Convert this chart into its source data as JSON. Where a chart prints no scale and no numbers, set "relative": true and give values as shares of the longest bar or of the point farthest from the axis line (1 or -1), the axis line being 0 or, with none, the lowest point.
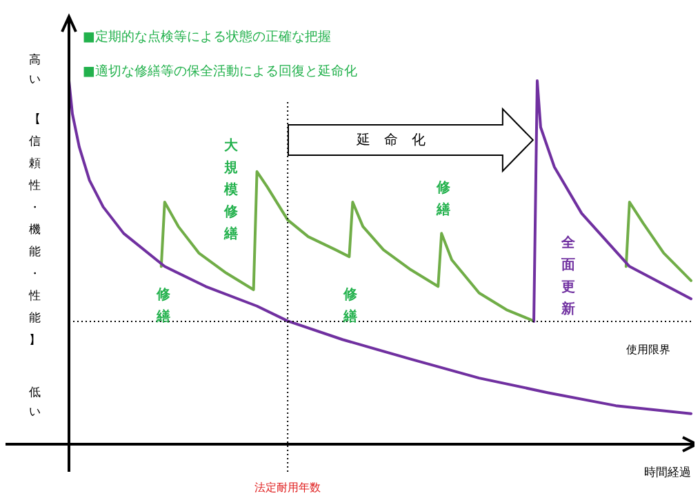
{
  "chart_data": {
    "type": "line",
    "relative": true,
    "marker": "none",
    "line_style": "solid",
    "ylabel": "【信頼性・機能・性能】",
    "xlabel": "時間経過",
    "categories": [
      null,
      null,
      null,
      null,
      null,
      null,
      null,
      null,
      null,
      null,
      null,
      null,
      null,
      null,
      null,
      null,
      null,
      null,
      null,
      null,
      null,
      null,
      null,
      null,
      null,
      null,
      null,
      null,
      null,
      null,
      null,
      null,
      null,
      null,
      null,
      null,
      null,
      null,
      null,
      null,
      null,
      null,
      null,
      null,
      null,
      null,
      null,
      null,
      null,
      null,
      null,
      null,
      null,
      null,
      null,
      null,
      null,
      null,
      null,
      null,
      null,
      null,
      null,
      null,
      null,
      null,
      null,
      null,
      null,
      null,
      null,
      null,
      null,
      null,
      null,
      null,
      null,
      null,
      null,
      null,
      null,
      null,
      null,
      null,
      null,
      null,
      null,
      null,
      null,
      null,
      null,
      null,
      null,
      null,
      null,
      null,
      null,
      null,
      null,
      null,
      null,
      null,
      null,
      null,
      null,
      null,
      null,
      null,
      null,
      null,
      null,
      null,
      null,
      null,
      null,
      null,
      null,
      null,
      null,
      null,
      null,
      null,
      null,
      null,
      null,
      null,
      null,
      null,
      null,
      null,
      null,
      null,
      null,
      null,
      null,
      null,
      null,
      null,
      null,
      null,
      null,
      null,
      null,
      null,
      null,
      null,
      null,
      null,
      null,
      null,
      null,
      null,
      null,
      null,
      null,
      null,
      null,
      null,
      null,
      null,
      null,
      null,
      null,
      null,
      null,
      null,
      null,
      null,
      null,
      null,
      null,
      null,
      null,
      null,
      null,
      null,
      null,
      null,
      null,
      null,
      null,
      null,
      null
    ],
    "series": [
      {
        "color": "#7030a0",
        "values": [
          1.0,
          0.909,
          null,
          0.818,
          null,
          null,
          0.726,
          null,
          null,
          null,
          0.653,
          null,
          null,
          null,
          null,
          null,
          0.58,
          null,
          null,
          null,
          null,
          null,
          null,
          null,
          null,
          null,
          null,
          null,
          0.489,
          null,
          null,
          null,
          null,
          null,
          null,
          null,
          null,
          null,
          null,
          null,
          0.434,
          null,
          null,
          null,
          null,
          null,
          null,
          null,
          null,
          null,
          null,
          null,
          null,
          null,
          null,
          0.38,
          null,
          null,
          null,
          null,
          null,
          null,
          null,
          null,
          0.339,
          null,
          null,
          null,
          null,
          null,
          null,
          null,
          null,
          null,
          null,
          null,
          null,
          null,
          null,
          null,
          0.288,
          null,
          null,
          null,
          null,
          null,
          null,
          null,
          null,
          null,
          null,
          null,
          null,
          null,
          null,
          null,
          null,
          null,
          null,
          null,
          0.234,
          null,
          null,
          null,
          null,
          null,
          null,
          null,
          null,
          null,
          null,
          null,
          null,
          null,
          null,
          null,
          null,
          null,
          null,
          null,
          0.182,
          null,
          null,
          null,
          null,
          null,
          null,
          null,
          null,
          null,
          null,
          null,
          null,
          null,
          null,
          null,
          null,
          null,
          null,
          null,
          0.142,
          null,
          null,
          null,
          null,
          null,
          null,
          null,
          null,
          null,
          null,
          null,
          null,
          null,
          null,
          null,
          null,
          null,
          null,
          null,
          0.106,
          null,
          null,
          null,
          null,
          null,
          null,
          null,
          null,
          null,
          null,
          null,
          null,
          null,
          null,
          null,
          null,
          null,
          null,
          null,
          null,
          null,
          0.084
        ]
      },
      {
        "color": "#7030a0",
        "values": [
          null,
          null,
          null,
          null,
          null,
          null,
          null,
          null,
          null,
          null,
          null,
          null,
          null,
          null,
          null,
          null,
          null,
          null,
          null,
          null,
          null,
          null,
          null,
          null,
          null,
          null,
          null,
          null,
          null,
          null,
          null,
          null,
          null,
          null,
          null,
          null,
          null,
          null,
          null,
          null,
          null,
          null,
          null,
          null,
          null,
          null,
          null,
          null,
          null,
          null,
          null,
          null,
          null,
          null,
          null,
          null,
          null,
          null,
          null,
          null,
          null,
          null,
          null,
          null,
          null,
          null,
          null,
          null,
          null,
          null,
          null,
          null,
          null,
          null,
          null,
          null,
          null,
          null,
          null,
          null,
          null,
          null,
          null,
          null,
          null,
          null,
          null,
          null,
          null,
          null,
          null,
          null,
          null,
          null,
          null,
          null,
          null,
          null,
          null,
          null,
          null,
          null,
          null,
          null,
          null,
          null,
          null,
          null,
          null,
          null,
          null,
          null,
          null,
          null,
          null,
          null,
          null,
          null,
          null,
          null,
          null,
          null,
          null,
          null,
          null,
          null,
          null,
          null,
          null,
          null,
          null,
          null,
          null,
          null,
          null,
          null,
          0.338,
          1.0,
          0.872,
          null,
          null,
          null,
          0.763,
          null,
          null,
          null,
          null,
          null,
          null,
          null,
          0.635,
          null,
          null,
          null,
          null,
          null,
          null,
          null,
          null,
          null,
          null,
          null,
          null,
          null,
          0.489,
          null,
          null,
          null,
          null,
          null,
          null,
          null,
          null,
          null,
          null,
          null,
          null,
          null,
          null,
          null,
          null,
          null,
          0.4
        ]
      },
      {
        "color": "#70ad47",
        "values": [
          null,
          null,
          null,
          null,
          null,
          null,
          null,
          null,
          null,
          null,
          null,
          null,
          null,
          null,
          null,
          null,
          null,
          null,
          null,
          null,
          null,
          null,
          null,
          null,
          null,
          null,
          null,
          0.489,
          0.666,
          null,
          null,
          null,
          0.599,
          null,
          null,
          null,
          null,
          null,
          0.526,
          null,
          null,
          null,
          null,
          null,
          null,
          null,
          0.471,
          null,
          null,
          null,
          null,
          null,
          null,
          null,
          0.425,
          0.75,
          null,
          null,
          0.708,
          null,
          null,
          null,
          null,
          null,
          0.617,
          null,
          null,
          null,
          null,
          null,
          0.571,
          null,
          null,
          null,
          null,
          null,
          null,
          null,
          0.535,
          null,
          null,
          null,
          0.516,
          0.666,
          null,
          null,
          0.599,
          null,
          null,
          null,
          null,
          null,
          0.535,
          null,
          null,
          null,
          null,
          null,
          null,
          null,
          0.48,
          null,
          null,
          null,
          null,
          null,
          null,
          null,
          0.434,
          0.58,
          null,
          null,
          0.507,
          null,
          null,
          null,
          null,
          null,
          null,
          null,
          0.416,
          null,
          null,
          null,
          null,
          null,
          null,
          null,
          0.37,
          null,
          null,
          null,
          null,
          null,
          null,
          null,
          0.339,
          null,
          null,
          null,
          null,
          null,
          null,
          null,
          null,
          null,
          null,
          null,
          null,
          null,
          null,
          null,
          null,
          null,
          null,
          null,
          null,
          null,
          null,
          null,
          null,
          null,
          null,
          null,
          null,
          null,
          null,
          null,
          null,
          null,
          null,
          null,
          null,
          null,
          null,
          null,
          null,
          null,
          null,
          null,
          null,
          null,
          null
        ]
      },
      {
        "color": "#70ad47",
        "values": [
          null,
          null,
          null,
          null,
          null,
          null,
          null,
          null,
          null,
          null,
          null,
          null,
          null,
          null,
          null,
          null,
          null,
          null,
          null,
          null,
          null,
          null,
          null,
          null,
          null,
          null,
          null,
          null,
          null,
          null,
          null,
          null,
          null,
          null,
          null,
          null,
          null,
          null,
          null,
          null,
          null,
          null,
          null,
          null,
          null,
          null,
          null,
          null,
          null,
          null,
          null,
          null,
          null,
          null,
          null,
          null,
          null,
          null,
          null,
          null,
          null,
          null,
          null,
          null,
          null,
          null,
          null,
          null,
          null,
          null,
          null,
          null,
          null,
          null,
          null,
          null,
          null,
          null,
          null,
          null,
          null,
          null,
          null,
          null,
          null,
          null,
          null,
          null,
          null,
          null,
          null,
          null,
          null,
          null,
          null,
          null,
          null,
          null,
          null,
          null,
          null,
          null,
          null,
          null,
          null,
          null,
          null,
          null,
          null,
          null,
          null,
          null,
          null,
          null,
          null,
          null,
          null,
          null,
          null,
          null,
          null,
          null,
          null,
          null,
          null,
          null,
          null,
          null,
          null,
          null,
          null,
          null,
          null,
          null,
          null,
          null,
          null,
          null,
          null,
          null,
          null,
          null,
          null,
          null,
          null,
          null,
          null,
          null,
          null,
          null,
          null,
          null,
          null,
          null,
          null,
          null,
          null,
          null,
          null,
          null,
          null,
          null,
          null,
          0.489,
          0.666,
          null,
          null,
          null,
          0.608,
          null,
          null,
          null,
          null,
          null,
          0.526,
          null,
          null,
          null,
          null,
          null,
          null,
          null,
          0.45
        ]
      }
    ],
    "ref_lines": [
      {
        "axis": "y",
        "value": 0.338,
        "label": "使用限界",
        "line_style": "dotted"
      },
      {
        "axis": "x",
        "label": "法定耐用年数",
        "line_style": "dotted"
      }
    ],
    "annotations": [
      "■定期的な点検等による状態の正確な把握",
      "■適切な修繕等の保全活動による回復と延命化",
      "高い",
      "低い",
      "延　命　化",
      "修繕",
      "大規模修繕",
      "修繕",
      "修繕",
      "全面更新"
    ]
  }
}
